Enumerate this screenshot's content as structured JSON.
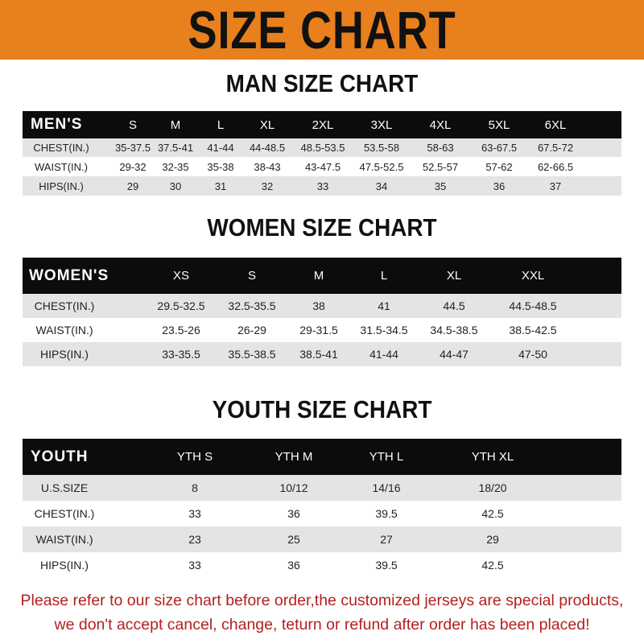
{
  "title": "SIZE CHART",
  "colors": {
    "banner": "#e8801e",
    "header_row": "#0e0b0b",
    "stripe": "#e4e4e4",
    "note": "#b3201f"
  },
  "men": {
    "title": "MAN SIZE CHART",
    "header": [
      "MEN'S",
      "S",
      "M",
      "L",
      "XL",
      "2XL",
      "3XL",
      "4XL",
      "5XL",
      "6XL"
    ],
    "rows": [
      [
        "CHEST(IN.)",
        "35-37.5",
        "37.5-41",
        "41-44",
        "44-48.5",
        "48.5-53.5",
        "53.5-58",
        "58-63",
        "63-67.5",
        "67.5-72"
      ],
      [
        "WAIST(IN.)",
        "29-32",
        "32-35",
        "35-38",
        "38-43",
        "43-47.5",
        "47.5-52.5",
        "52.5-57",
        "57-62",
        "62-66.5"
      ],
      [
        "HIPS(IN.)",
        "29",
        "30",
        "31",
        "32",
        "33",
        "34",
        "35",
        "36",
        "37"
      ]
    ]
  },
  "women": {
    "title": "WOMEN SIZE CHART",
    "header": [
      "WOMEN'S",
      "XS",
      "S",
      "M",
      "L",
      "XL",
      "XXL"
    ],
    "rows": [
      [
        "CHEST(IN.)",
        "29.5-32.5",
        "32.5-35.5",
        "38",
        "41",
        "44.5",
        "44.5-48.5"
      ],
      [
        "WAIST(IN.)",
        "23.5-26",
        "26-29",
        "29-31.5",
        "31.5-34.5",
        "34.5-38.5",
        "38.5-42.5"
      ],
      [
        "HIPS(IN.)",
        "33-35.5",
        "35.5-38.5",
        "38.5-41",
        "41-44",
        "44-47",
        "47-50"
      ]
    ]
  },
  "youth": {
    "title": "YOUTH SIZE CHART",
    "header": [
      "YOUTH",
      "YTH S",
      "YTH M",
      "YTH L",
      "YTH XL"
    ],
    "rows": [
      [
        "U.S.SIZE",
        "8",
        "10/12",
        "14/16",
        "18/20"
      ],
      [
        "CHEST(IN.)",
        "33",
        "36",
        "39.5",
        "42.5"
      ],
      [
        "WAIST(IN.)",
        "23",
        "25",
        "27",
        "29"
      ],
      [
        "HIPS(IN.)",
        "33",
        "36",
        "39.5",
        "42.5"
      ]
    ]
  },
  "notice": {
    "line1": "Please refer to our size chart before order,the customized jerseys are special products,",
    "line2": "we don't accept cancel, change, teturn or refund after order has been placed!"
  }
}
